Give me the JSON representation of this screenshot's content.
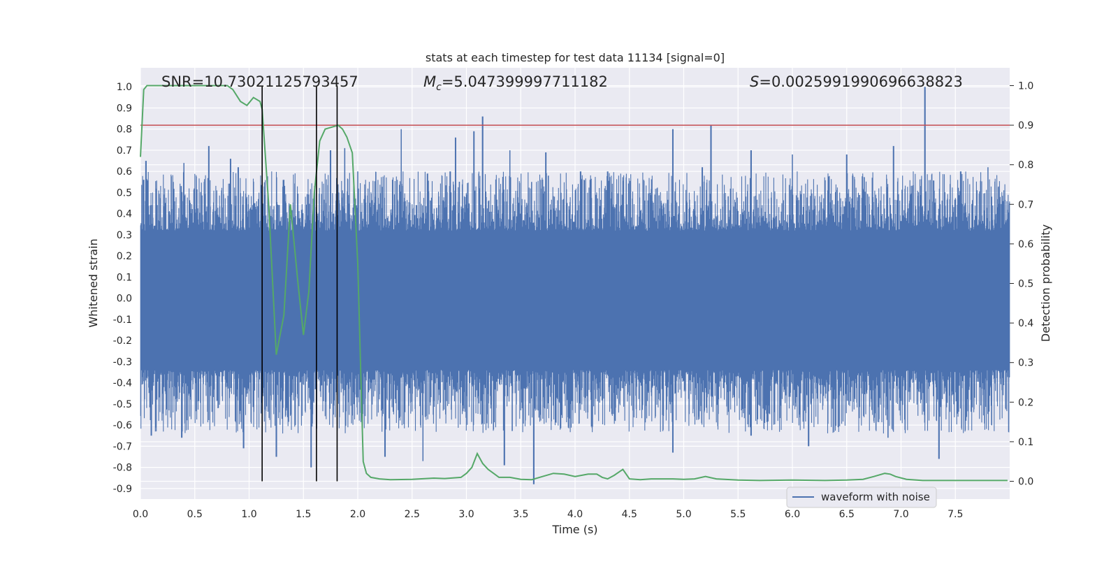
{
  "chart_data": {
    "type": "line",
    "title": "stats at each timestep for test data 11134 [signal=0]",
    "xlabel": "Time (s)",
    "ylabel_left": "Whitened strain",
    "ylabel_right": "Detection probability",
    "xlim": [
      0.0,
      8.0
    ],
    "ylim_left": [
      -0.95,
      1.09
    ],
    "ylim_right": [
      -0.045,
      1.045
    ],
    "x_ticks": [
      "0.0",
      "0.5",
      "1.0",
      "1.5",
      "2.0",
      "2.5",
      "3.0",
      "3.5",
      "4.0",
      "4.5",
      "5.0",
      "5.5",
      "6.0",
      "6.5",
      "7.0",
      "7.5"
    ],
    "y_ticks_left": [
      "1.0",
      "0.9",
      "0.8",
      "0.7",
      "0.6",
      "0.5",
      "0.4",
      "0.3",
      "0.2",
      "0.1",
      "0.0",
      "-0.1",
      "-0.2",
      "-0.3",
      "-0.4",
      "-0.5",
      "-0.6",
      "-0.7",
      "-0.8",
      "-0.9"
    ],
    "y_ticks_right": [
      "1.0",
      "0.9",
      "0.8",
      "0.7",
      "0.6",
      "0.5",
      "0.4",
      "0.3",
      "0.2",
      "0.1",
      "0.0"
    ],
    "grid": true,
    "legend_position": "lower-right",
    "annotations": {
      "snr": "SNR=10.73021125793457",
      "mc": "=5.047399997711182",
      "s": "=0.0025991990696638823",
      "mc_symbol": "M",
      "mc_sub": "c",
      "s_symbol": "S"
    },
    "threshold_level_right": 0.9,
    "vertical_markers_x": [
      1.12,
      1.62,
      1.81
    ],
    "series": [
      {
        "name": "waveform with noise",
        "axis": "left",
        "color": "#4c72b0",
        "description_values": {
          "peaks_upper": [
            [
              0.03,
              0.56
            ],
            [
              0.05,
              0.65
            ],
            [
              0.3,
              0.55
            ],
            [
              0.4,
              0.64
            ],
            [
              0.63,
              0.72
            ],
            [
              0.83,
              0.66
            ],
            [
              0.9,
              0.62
            ],
            [
              1.05,
              0.45
            ],
            [
              1.32,
              0.56
            ],
            [
              1.75,
              0.7
            ],
            [
              1.88,
              0.71
            ],
            [
              2.0,
              0.6
            ],
            [
              2.4,
              0.8
            ],
            [
              2.85,
              0.6
            ],
            [
              2.9,
              0.76
            ],
            [
              3.07,
              0.79
            ],
            [
              3.15,
              0.86
            ],
            [
              3.4,
              0.7
            ],
            [
              3.6,
              0.55
            ],
            [
              3.73,
              0.69
            ],
            [
              4.05,
              0.6
            ],
            [
              4.3,
              0.6
            ],
            [
              4.9,
              0.8
            ],
            [
              5.17,
              0.62
            ],
            [
              5.25,
              0.82
            ],
            [
              5.62,
              0.7
            ],
            [
              6.0,
              0.68
            ],
            [
              6.5,
              0.68
            ],
            [
              6.93,
              0.72
            ],
            [
              7.22,
              1.0
            ],
            [
              7.55,
              0.6
            ],
            [
              7.8,
              0.62
            ]
          ],
          "peaks_lower": [
            [
              0.1,
              -0.65
            ],
            [
              0.38,
              -0.66
            ],
            [
              0.95,
              -0.71
            ],
            [
              1.25,
              -0.75
            ],
            [
              1.57,
              -0.8
            ],
            [
              2.25,
              -0.75
            ],
            [
              2.6,
              -0.77
            ],
            [
              3.35,
              -0.79
            ],
            [
              3.62,
              -0.88
            ],
            [
              4.9,
              -0.73
            ],
            [
              5.62,
              -0.65
            ],
            [
              6.15,
              -0.7
            ],
            [
              6.88,
              -0.66
            ],
            [
              7.35,
              -0.76
            ]
          ],
          "band": [
            -0.32,
            0.3
          ]
        }
      },
      {
        "name": "",
        "axis": "right",
        "color": "#55a868",
        "x": [
          0.0,
          0.03,
          0.06,
          0.1,
          0.2,
          0.3,
          0.4,
          0.5,
          0.6,
          0.7,
          0.8,
          0.85,
          0.92,
          0.98,
          1.04,
          1.1,
          1.12,
          1.18,
          1.25,
          1.32,
          1.38,
          1.45,
          1.5,
          1.55,
          1.6,
          1.65,
          1.7,
          1.76,
          1.82,
          1.86,
          1.9,
          1.95,
          2.0,
          2.05,
          2.08,
          2.12,
          2.2,
          2.3,
          2.5,
          2.7,
          2.8,
          2.95,
          3.0,
          3.05,
          3.1,
          3.15,
          3.2,
          3.25,
          3.3,
          3.4,
          3.5,
          3.6,
          3.7,
          3.8,
          3.9,
          4.0,
          4.06,
          4.12,
          4.2,
          4.25,
          4.3,
          4.36,
          4.44,
          4.5,
          4.6,
          4.7,
          4.9,
          5.0,
          5.1,
          5.2,
          5.3,
          5.5,
          5.7,
          6.0,
          6.3,
          6.5,
          6.65,
          6.75,
          6.85,
          6.9,
          6.95,
          7.05,
          7.2,
          7.5,
          7.8,
          7.98
        ],
        "values": [
          0.82,
          0.99,
          1.0,
          1.0,
          1.0,
          1.0,
          1.0,
          1.0,
          1.0,
          1.0,
          1.0,
          0.99,
          0.96,
          0.95,
          0.97,
          0.96,
          0.94,
          0.7,
          0.32,
          0.42,
          0.7,
          0.5,
          0.37,
          0.48,
          0.73,
          0.86,
          0.89,
          0.895,
          0.9,
          0.89,
          0.87,
          0.83,
          0.55,
          0.05,
          0.02,
          0.01,
          0.006,
          0.004,
          0.005,
          0.008,
          0.007,
          0.01,
          0.02,
          0.035,
          0.07,
          0.045,
          0.03,
          0.02,
          0.01,
          0.01,
          0.005,
          0.004,
          0.012,
          0.02,
          0.018,
          0.012,
          0.015,
          0.018,
          0.018,
          0.01,
          0.006,
          0.015,
          0.03,
          0.006,
          0.004,
          0.006,
          0.006,
          0.005,
          0.006,
          0.012,
          0.006,
          0.003,
          0.002,
          0.003,
          0.002,
          0.003,
          0.005,
          0.012,
          0.02,
          0.018,
          0.012,
          0.005,
          0.002,
          0.002,
          0.002,
          0.002
        ]
      },
      {
        "name": "",
        "axis": "right",
        "color": "#c44e52",
        "type": "hline",
        "value": 0.9
      }
    ]
  }
}
